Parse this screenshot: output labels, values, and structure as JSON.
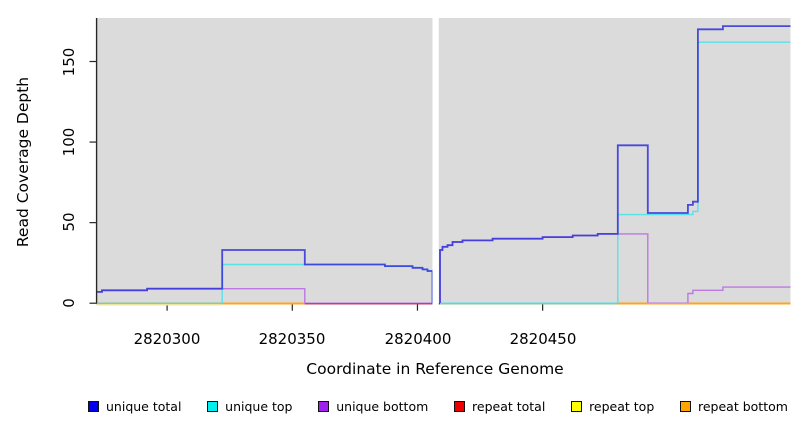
{
  "chart_data": {
    "type": "step-line",
    "title": "",
    "xlabel": "Coordinate in Reference Genome",
    "ylabel": "Read Coverage Depth",
    "xticks": [
      2820300,
      2820350,
      2820400,
      2820450
    ],
    "yticks": [
      0,
      50,
      100,
      150
    ],
    "xlim": [
      2820272,
      2820549
    ],
    "ylim": [
      0,
      177
    ],
    "grid": false,
    "legend_position": "bottom",
    "plot_bg_color": "#DBDBDB",
    "axis_color": "#262626",
    "gap_region": [
      2820406,
      2820408.5
    ],
    "series": [
      {
        "name": "repeat top",
        "legend_color": "#FFFF00",
        "line_color": "#E6E06A",
        "width": 1.4,
        "segments": [
          [
            [
              2820272,
              0
            ],
            [
              2820322,
              0
            ]
          ]
        ]
      },
      {
        "name": "repeat total",
        "legend_color": "#EE0000",
        "line_color": "#C94069",
        "width": 1.4,
        "segments": [
          [
            [
              2820355,
              0
            ],
            [
              2820406,
              0
            ]
          ]
        ]
      },
      {
        "name": "repeat bottom",
        "legend_color": "#FFA500",
        "line_color": "#FFA41E",
        "width": 1.4,
        "segments": [
          [
            [
              2820322,
              0
            ],
            [
              2820355,
              0
            ]
          ],
          [
            [
              2820480,
              0
            ],
            [
              2820549,
              0
            ]
          ]
        ]
      },
      {
        "name": "unique bottom",
        "legend_color": "#A020F0",
        "line_color": "#BC79E2",
        "width": 1.4,
        "segments": [
          [
            [
              2820272,
              7
            ],
            [
              2820274,
              8
            ],
            [
              2820292,
              9
            ],
            [
              2820322,
              9
            ],
            [
              2820355,
              0
            ],
            [
              2820406,
              0
            ]
          ],
          [
            [
              2820409,
              0
            ],
            [
              2820409,
              33
            ],
            [
              2820410,
              35
            ],
            [
              2820412,
              36
            ],
            [
              2820414,
              38
            ],
            [
              2820418,
              39
            ],
            [
              2820430,
              40
            ],
            [
              2820450,
              41
            ],
            [
              2820462,
              42
            ],
            [
              2820472,
              43
            ],
            [
              2820492,
              43
            ],
            [
              2820492,
              0
            ],
            [
              2820508,
              6
            ],
            [
              2820510,
              8
            ],
            [
              2820522,
              10
            ],
            [
              2820549,
              10
            ]
          ]
        ]
      },
      {
        "name": "unique top",
        "legend_color": "#00EEEE",
        "line_color": "#58E2EA",
        "width": 1.4,
        "segments": [
          [
            [
              2820272,
              0
            ],
            [
              2820322,
              24
            ],
            [
              2820355,
              24
            ],
            [
              2820387,
              23
            ],
            [
              2820398,
              22
            ],
            [
              2820402,
              21
            ],
            [
              2820404,
              20
            ],
            [
              2820406,
              0
            ]
          ],
          [
            [
              2820409,
              0
            ],
            [
              2820480,
              0
            ],
            [
              2820480,
              55
            ],
            [
              2820510,
              57
            ],
            [
              2820512,
              162
            ],
            [
              2820549,
              162
            ]
          ]
        ]
      },
      {
        "name": "unique total",
        "legend_color": "#0000EE",
        "line_color": "#3434DC",
        "opacity": 0.88,
        "width": 1.8,
        "segments": [
          [
            [
              2820272,
              7
            ],
            [
              2820274,
              8
            ],
            [
              2820292,
              9
            ],
            [
              2820322,
              33
            ],
            [
              2820355,
              24
            ],
            [
              2820387,
              23
            ],
            [
              2820398,
              22
            ],
            [
              2820402,
              21
            ],
            [
              2820404,
              20
            ],
            [
              2820406,
              0
            ]
          ],
          [
            [
              2820409,
              0
            ],
            [
              2820409,
              33
            ],
            [
              2820410,
              35
            ],
            [
              2820412,
              36
            ],
            [
              2820414,
              38
            ],
            [
              2820418,
              39
            ],
            [
              2820430,
              40
            ],
            [
              2820450,
              41
            ],
            [
              2820462,
              42
            ],
            [
              2820472,
              43
            ],
            [
              2820480,
              98
            ],
            [
              2820492,
              56
            ],
            [
              2820508,
              61
            ],
            [
              2820510,
              63
            ],
            [
              2820512,
              170
            ],
            [
              2820522,
              172
            ],
            [
              2820549,
              172
            ]
          ]
        ]
      }
    ],
    "baseline_segments": [
      {
        "from": 2820272,
        "to": 2820322,
        "color": "#E9E4A0",
        "dy": 1.6
      },
      {
        "from": 2820272,
        "to": 2820322,
        "color": "#8CC99B",
        "dy": 0
      },
      {
        "from": 2820322,
        "to": 2820355,
        "color": "#FFA41E",
        "dy": 0.6
      },
      {
        "from": 2820355,
        "to": 2820406,
        "color": "#C94069",
        "dy": 0.6
      },
      {
        "from": 2820409,
        "to": 2820480,
        "color": "#8CC99B",
        "dy": 0.6
      },
      {
        "from": 2820480,
        "to": 2820549,
        "color": "#FFA41E",
        "dy": 0.6
      }
    ]
  }
}
